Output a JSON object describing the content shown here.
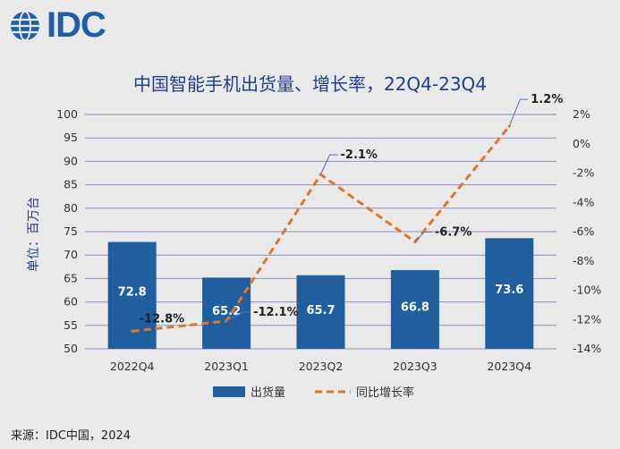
{
  "logo": {
    "text": "IDC"
  },
  "source": "来源：IDC中国，2024",
  "colors": {
    "bar": "#1f5fa0",
    "line": "#e0752a",
    "grid": "#8b90c4",
    "title": "#1f3f8c",
    "logo": "#1f5fa8"
  },
  "chart_data": {
    "type": "bar",
    "title": "中国智能手机出货量、增长率，22Q4-23Q4",
    "ylabel": "单位：百万台",
    "categories": [
      "2022Q4",
      "2023Q1",
      "2023Q2",
      "2023Q3",
      "2023Q4"
    ],
    "ylim": [
      50,
      100
    ],
    "yticks": [
      50,
      55,
      60,
      65,
      70,
      75,
      80,
      85,
      90,
      95,
      100
    ],
    "y2lim": [
      -14,
      2
    ],
    "y2ticks": [
      -14,
      -12,
      -10,
      -8,
      -6,
      -4,
      -2,
      0,
      2
    ],
    "y2tick_labels": [
      "-14%",
      "-12%",
      "-10%",
      "-8%",
      "-6%",
      "-4%",
      "-2%",
      "0%",
      "2%"
    ],
    "grid": true,
    "legend_position": "bottom",
    "series": [
      {
        "name": "出货量",
        "type": "bar",
        "axis": "left",
        "values": [
          72.8,
          65.2,
          65.7,
          66.8,
          73.6
        ],
        "labels": [
          "72.8",
          "65.2",
          "65.7",
          "66.8",
          "73.6"
        ]
      },
      {
        "name": "同比增长率",
        "type": "line",
        "axis": "right",
        "style": "dashed",
        "values": [
          -12.8,
          -12.1,
          -2.1,
          -6.7,
          1.2
        ],
        "labels": [
          "-12.8%",
          "-12.1%",
          "-2.1%",
          "-6.7%",
          "1.2%"
        ]
      }
    ]
  }
}
